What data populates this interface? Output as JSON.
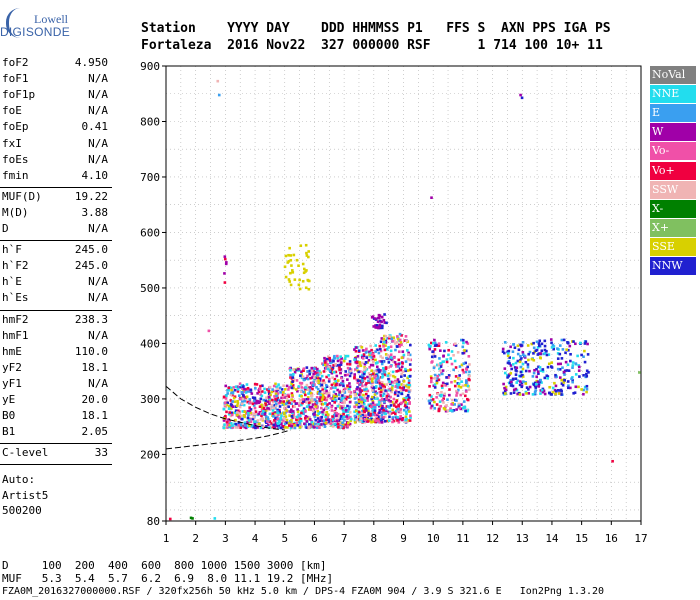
{
  "logo": {
    "line1": "Lowell",
    "line2": "DIGISONDE"
  },
  "header": {
    "labels": "Station    YYYY DAY    DDD HHMMSS P1   FFS S  AXN PPS IGA PS",
    "values": "Fortaleza  2016 Nov22  327 000000 RSF      1 714 100 10+ 11"
  },
  "params": {
    "group1": [
      {
        "k": "foF2",
        "v": "4.950"
      },
      {
        "k": "foF1",
        "v": "N/A"
      },
      {
        "k": "foF1p",
        "v": "N/A"
      },
      {
        "k": "foE",
        "v": "N/A"
      },
      {
        "k": "foEp",
        "v": "0.41"
      },
      {
        "k": "fxI",
        "v": "N/A"
      },
      {
        "k": "foEs",
        "v": "N/A"
      },
      {
        "k": "fmin",
        "v": "4.10"
      }
    ],
    "group2": [
      {
        "k": "MUF(D)",
        "v": "19.22"
      },
      {
        "k": "M(D)",
        "v": "3.88"
      },
      {
        "k": "D",
        "v": "N/A"
      }
    ],
    "group3": [
      {
        "k": "h`F",
        "v": "245.0"
      },
      {
        "k": "h`F2",
        "v": "245.0"
      },
      {
        "k": "h`E",
        "v": "N/A"
      },
      {
        "k": "h`Es",
        "v": "N/A"
      }
    ],
    "group4": [
      {
        "k": "hmF2",
        "v": "238.3"
      },
      {
        "k": "hmF1",
        "v": "N/A"
      },
      {
        "k": "hmE",
        "v": "110.0"
      },
      {
        "k": "yF2",
        "v": "18.1"
      },
      {
        "k": "yF1",
        "v": "N/A"
      },
      {
        "k": "yE",
        "v": "20.0"
      },
      {
        "k": "B0",
        "v": "18.1"
      },
      {
        "k": "B1",
        "v": "2.05"
      }
    ],
    "group5": [
      {
        "k": "C-level",
        "v": "33"
      }
    ],
    "auto_lines": [
      "Auto:",
      "Artist5",
      "500200"
    ]
  },
  "legend": [
    {
      "label": "NoVal",
      "color": "#808080"
    },
    {
      "label": "NNE",
      "color": "#22ddee"
    },
    {
      "label": "E",
      "color": "#3a9ff0"
    },
    {
      "label": "W",
      "color": "#a000a8"
    },
    {
      "label": "Vo-",
      "color": "#f050a8"
    },
    {
      "label": "Vo+",
      "color": "#f00040"
    },
    {
      "label": "SSW",
      "color": "#f0b4b4"
    },
    {
      "label": "X-",
      "color": "#008000"
    },
    {
      "label": "X+",
      "color": "#80c060"
    },
    {
      "label": "SSE",
      "color": "#d8d000"
    },
    {
      "label": "NNW",
      "color": "#2020d0"
    }
  ],
  "footer": {
    "line1": "D     100  200  400  600  800 1000 1500 3000 [km]",
    "line2": "MUF   5.3  5.4  5.7  6.2  6.9  8.0 11.1 19.2 [MHz]",
    "line3": "FZA0M_2016327000000.RSF / 320fx256h 50 kHz 5.0 km / DPS-4 FZA0M 904 / 3.9 S 321.6 E   Ion2Png 1.3.20"
  },
  "chart_data": {
    "type": "scatter",
    "title": "",
    "xlabel": "",
    "ylabel": "",
    "xlim": [
      1,
      17
    ],
    "ylim": [
      80,
      900
    ],
    "x_ticks": [
      1,
      2,
      3,
      4,
      5,
      6,
      7,
      8,
      9,
      10,
      11,
      12,
      13,
      14,
      15,
      16,
      17
    ],
    "y_ticks": [
      80,
      200,
      300,
      400,
      500,
      600,
      700,
      800,
      900
    ],
    "grid": true,
    "trace_curve": [
      [
        1,
        210
      ],
      [
        2,
        216
      ],
      [
        3,
        222
      ],
      [
        4,
        229
      ],
      [
        4.5,
        234
      ],
      [
        5,
        241
      ],
      [
        5.2,
        244
      ]
    ],
    "trace_curve_upper": [
      [
        1,
        323
      ],
      [
        1.5,
        300
      ],
      [
        2,
        285
      ],
      [
        2.5,
        273
      ],
      [
        3,
        264
      ],
      [
        3.5,
        258
      ],
      [
        4,
        252
      ],
      [
        4.5,
        247
      ],
      [
        5,
        244
      ]
    ],
    "clusters": [
      {
        "x": [
          2.9,
          5.1
        ],
        "y": [
          250,
          330
        ],
        "n": 520,
        "colors": [
          "E",
          "NNE",
          "Vo+",
          "SSE",
          "W",
          "NNW",
          "Vo-",
          "SSW"
        ]
      },
      {
        "x": [
          5.1,
          6.2
        ],
        "y": [
          250,
          360
        ],
        "n": 340,
        "colors": [
          "E",
          "NNE",
          "Vo+",
          "SSE",
          "W",
          "NNW",
          "Vo-",
          "SSW"
        ]
      },
      {
        "x": [
          6.2,
          7.2
        ],
        "y": [
          250,
          380
        ],
        "n": 360,
        "colors": [
          "E",
          "NNE",
          "Vo+",
          "SSE",
          "W",
          "NNW",
          "Vo-",
          "SSW"
        ]
      },
      {
        "x": [
          7.3,
          8.2
        ],
        "y": [
          260,
          400
        ],
        "n": 380,
        "colors": [
          "E",
          "NNE",
          "Vo+",
          "SSE",
          "W",
          "NNW",
          "Vo-",
          "SSW"
        ]
      },
      {
        "x": [
          8.2,
          9.2
        ],
        "y": [
          260,
          420
        ],
        "n": 360,
        "colors": [
          "E",
          "NNE",
          "Vo+",
          "SSE",
          "W",
          "NNW",
          "Vo-",
          "SSW"
        ]
      },
      {
        "x": [
          9.8,
          11.2
        ],
        "y": [
          280,
          410
        ],
        "n": 220,
        "colors": [
          "E",
          "NNE",
          "Vo+",
          "SSE",
          "W",
          "NNW",
          "Vo-",
          "SSW"
        ]
      },
      {
        "x": [
          12.3,
          15.2
        ],
        "y": [
          310,
          410
        ],
        "n": 320,
        "colors": [
          "NNW",
          "NNW",
          "NNW",
          "W",
          "E",
          "NNE",
          "SSE"
        ]
      },
      {
        "x": [
          7.9,
          8.4
        ],
        "y": [
          430,
          455
        ],
        "n": 30,
        "colors": [
          "NNW",
          "W"
        ]
      },
      {
        "x": [
          4.9,
          5.8
        ],
        "y": [
          500,
          580
        ],
        "n": 40,
        "colors": [
          "SSE"
        ]
      },
      {
        "x": [
          2.9,
          3.0
        ],
        "y": [
          500,
          560
        ],
        "n": 6,
        "colors": [
          "Vo+",
          "W"
        ]
      }
    ],
    "points": [
      {
        "x": 2.7,
        "y": 875,
        "c": "SSW"
      },
      {
        "x": 2.75,
        "y": 850,
        "c": "E"
      },
      {
        "x": 12.9,
        "y": 850,
        "c": "W"
      },
      {
        "x": 12.95,
        "y": 845,
        "c": "NNW"
      },
      {
        "x": 9.9,
        "y": 665,
        "c": "W"
      },
      {
        "x": 2.4,
        "y": 425,
        "c": "Vo-"
      },
      {
        "x": 16.0,
        "y": 190,
        "c": "Vo+"
      },
      {
        "x": 16.9,
        "y": 350,
        "c": "X+"
      },
      {
        "x": 1.8,
        "y": 88,
        "c": "X-"
      },
      {
        "x": 1.85,
        "y": 87,
        "c": "X-"
      },
      {
        "x": 1.1,
        "y": 86,
        "c": "Vo+"
      },
      {
        "x": 2.6,
        "y": 87,
        "c": "NNE"
      }
    ]
  }
}
